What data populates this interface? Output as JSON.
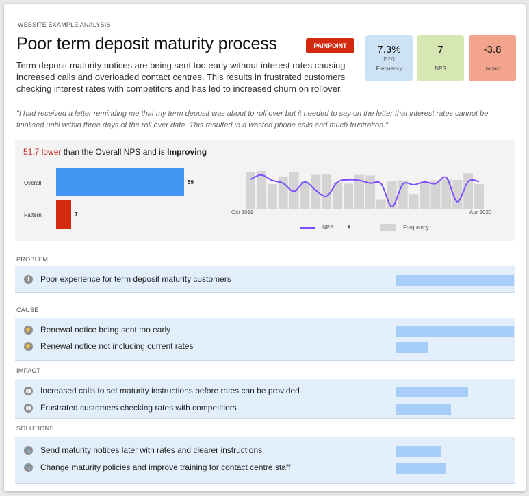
{
  "header": {
    "eyebrow": "WEBSITE EXAMPLE ANALYSIS",
    "title": "Poor term deposit maturity process",
    "badge": "PAINPOINT",
    "description": "Term deposit maturity notices are being sent too early without interest rates causing increased calls and overloaded contact centres. This results in frustrated customers checking interest rates with competitors and has led to increased churn on rollover."
  },
  "metrics": [
    {
      "value": "7.3%",
      "sub": "(527)",
      "label": "Frequency",
      "color": "#cde3f5"
    },
    {
      "value": "7",
      "sub": "",
      "label": "NPS",
      "color": "#d7e7b4"
    },
    {
      "value": "-3.8",
      "sub": "",
      "label": "Impact",
      "color": "#f2a48e"
    }
  ],
  "quote": "\"I had received a letter reminding me that my term deposit was about to roll over but it needed to say on the letter that interest rates cannot be finalised until within three days of the roll over date. This resulted in a wasted phone calls and much frustration.\"",
  "comparison": {
    "diff": "51.7 lower",
    "middle": " than the Overall NPS and is ",
    "trend": "Improving"
  },
  "chart_data": [
    {
      "type": "bar",
      "orientation": "horizontal",
      "categories": [
        "Overall",
        "Pattern"
      ],
      "values": [
        59,
        7
      ],
      "colors": [
        "#4396f3",
        "#d32a0f"
      ],
      "xlim": [
        0,
        59
      ]
    },
    {
      "type": "line",
      "x_start": "Oct 2019",
      "x_end": "Apr 2020",
      "frequency": [
        68,
        70,
        46,
        59,
        69,
        52,
        63,
        64,
        50,
        47,
        63,
        62,
        18,
        51,
        53,
        27,
        51,
        53,
        56,
        54,
        66,
        46
      ],
      "nps": [
        55,
        63,
        53,
        48,
        33,
        50,
        35,
        24,
        50,
        54,
        53,
        48,
        47,
        5,
        46,
        45,
        50,
        47,
        58,
        14,
        51,
        51
      ],
      "ylim": [
        0,
        100
      ],
      "series_colors": {
        "nps": "#7c4dff",
        "frequency": "#d4d4d4"
      },
      "legend": {
        "nps": "NPS",
        "frequency": "Frequency",
        "caret": "▼"
      }
    }
  ],
  "sections": [
    {
      "label": "PROBLEM",
      "items": [
        {
          "text": "Poor experience for term deposit maturity customers",
          "icon": "alert-icon",
          "glyph": "!",
          "value": 1.0
        }
      ]
    },
    {
      "label": "CAUSE",
      "items": [
        {
          "text": "Renewal notice being sent too early",
          "icon": "lightning-icon",
          "glyph": "⚡",
          "value": 1.0
        },
        {
          "text": "Renewal notice not including current rates",
          "icon": "lightning-icon",
          "glyph": "⚡",
          "value": 0.27
        }
      ]
    },
    {
      "label": "IMPACT",
      "items": [
        {
          "text": "Increased calls to set maturity instructions before rates can be provided",
          "icon": "signal-icon",
          "glyph": "◍",
          "value": 0.61
        },
        {
          "text": "Frustrated customers checking rates with competitiors",
          "icon": "signal-icon",
          "glyph": "◍",
          "value": 0.47
        }
      ]
    },
    {
      "label": "SOLUTIONS",
      "items": [
        {
          "text": "Send maturity notices later with rates and clearer instructions",
          "icon": "wrench-icon",
          "glyph": "🔧",
          "value": 0.38
        },
        {
          "text": "Change maturity policies and improve training for contact centre staff",
          "icon": "wrench-icon",
          "glyph": "🔧",
          "value": 0.43
        }
      ]
    }
  ]
}
